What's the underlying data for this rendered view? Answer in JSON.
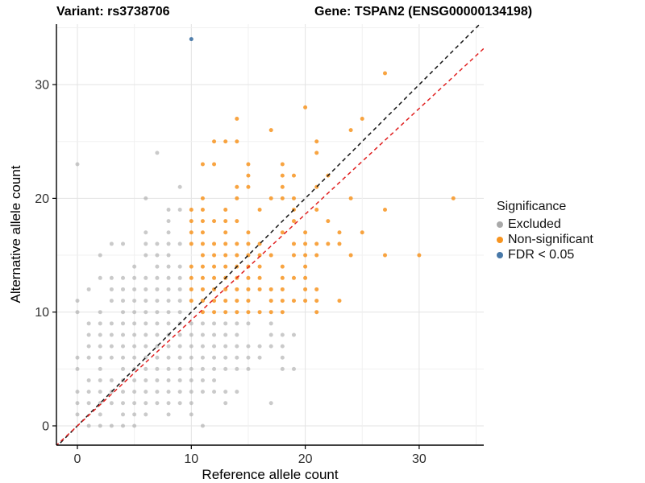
{
  "header": {
    "variant_title": "Variant: rs3738706",
    "gene_title": "Gene: TSPAN2 (ENSG00000134198)"
  },
  "axes": {
    "x_label": "Reference allele count",
    "y_label": "Alternative allele count",
    "x_tick_labels": [
      "0",
      "10",
      "20",
      "30"
    ],
    "y_tick_labels": [
      "0",
      "10",
      "20",
      "30"
    ]
  },
  "legend": {
    "title": "Significance"
  },
  "colors": {
    "excluded": "#A9A9A9",
    "nonsignificant": "#F79420",
    "fdr": "#4878A8",
    "identity_line": "#141414",
    "fit_line": "#E02020",
    "grid_major": "#E3E3E3",
    "grid_minor": "#F0F0F0",
    "axis": "#000000",
    "tick_text": "#303030"
  },
  "chart_data": {
    "type": "scatter",
    "xlabel": "Reference allele count",
    "ylabel": "Alternative allele count",
    "xlim": [
      -1.85,
      35.7
    ],
    "ylim": [
      -1.7,
      35.4
    ],
    "xticks": [
      0,
      10,
      20,
      30
    ],
    "yticks": [
      0,
      10,
      20,
      30
    ],
    "grid_interval": 5,
    "grid_on": true,
    "legend_position": "right",
    "series": [
      {
        "name": "Excluded",
        "color": "#A9A9A9",
        "opacity": 0.62,
        "points": [
          [
            1,
            0
          ],
          [
            2,
            0
          ],
          [
            3,
            0
          ],
          [
            4,
            0
          ],
          [
            5,
            0
          ],
          [
            11,
            0
          ],
          [
            0,
            1
          ],
          [
            2,
            1
          ],
          [
            4,
            1
          ],
          [
            5,
            1
          ],
          [
            6,
            1
          ],
          [
            8,
            1
          ],
          [
            10,
            1
          ],
          [
            0,
            2
          ],
          [
            1,
            2
          ],
          [
            2,
            2
          ],
          [
            3,
            2
          ],
          [
            4,
            2
          ],
          [
            5,
            2
          ],
          [
            6,
            2
          ],
          [
            7,
            2
          ],
          [
            8,
            2
          ],
          [
            9,
            2
          ],
          [
            10,
            2
          ],
          [
            13,
            2
          ],
          [
            17,
            2
          ],
          [
            0,
            3
          ],
          [
            1,
            3
          ],
          [
            2,
            3
          ],
          [
            3,
            3
          ],
          [
            4,
            3
          ],
          [
            5,
            3
          ],
          [
            6,
            3
          ],
          [
            7,
            3
          ],
          [
            8,
            3
          ],
          [
            9,
            3
          ],
          [
            10,
            3
          ],
          [
            11,
            3
          ],
          [
            12,
            3
          ],
          [
            13,
            3
          ],
          [
            14,
            3
          ],
          [
            1,
            4
          ],
          [
            2,
            4
          ],
          [
            3,
            4
          ],
          [
            4,
            4
          ],
          [
            5,
            4
          ],
          [
            6,
            4
          ],
          [
            7,
            4
          ],
          [
            8,
            4
          ],
          [
            9,
            4
          ],
          [
            10,
            4
          ],
          [
            11,
            4
          ],
          [
            12,
            4
          ],
          [
            0,
            5
          ],
          [
            2,
            5
          ],
          [
            4,
            5
          ],
          [
            5,
            5
          ],
          [
            6,
            5
          ],
          [
            7,
            5
          ],
          [
            8,
            5
          ],
          [
            9,
            5
          ],
          [
            10,
            5
          ],
          [
            11,
            5
          ],
          [
            12,
            5
          ],
          [
            13,
            5
          ],
          [
            14,
            5
          ],
          [
            15,
            5
          ],
          [
            18,
            5
          ],
          [
            19,
            5
          ],
          [
            0,
            6
          ],
          [
            1,
            6
          ],
          [
            2,
            6
          ],
          [
            3,
            6
          ],
          [
            4,
            6
          ],
          [
            5,
            6
          ],
          [
            6,
            6
          ],
          [
            7,
            6
          ],
          [
            8,
            6
          ],
          [
            9,
            6
          ],
          [
            10,
            6
          ],
          [
            11,
            6
          ],
          [
            12,
            6
          ],
          [
            13,
            6
          ],
          [
            14,
            6
          ],
          [
            15,
            6
          ],
          [
            16,
            6
          ],
          [
            18,
            6
          ],
          [
            1,
            7
          ],
          [
            2,
            7
          ],
          [
            3,
            7
          ],
          [
            4,
            7
          ],
          [
            5,
            7
          ],
          [
            6,
            7
          ],
          [
            7,
            7
          ],
          [
            8,
            7
          ],
          [
            9,
            7
          ],
          [
            10,
            7
          ],
          [
            11,
            7
          ],
          [
            12,
            7
          ],
          [
            13,
            7
          ],
          [
            14,
            7
          ],
          [
            15,
            7
          ],
          [
            16,
            7
          ],
          [
            17,
            7
          ],
          [
            18,
            7
          ],
          [
            1,
            8
          ],
          [
            2,
            8
          ],
          [
            3,
            8
          ],
          [
            4,
            8
          ],
          [
            5,
            8
          ],
          [
            6,
            8
          ],
          [
            7,
            8
          ],
          [
            8,
            8
          ],
          [
            9,
            8
          ],
          [
            10,
            8
          ],
          [
            11,
            8
          ],
          [
            12,
            8
          ],
          [
            13,
            8
          ],
          [
            14,
            8
          ],
          [
            17,
            8
          ],
          [
            18,
            8
          ],
          [
            19,
            8
          ],
          [
            1,
            9
          ],
          [
            2,
            9
          ],
          [
            3,
            9
          ],
          [
            4,
            9
          ],
          [
            5,
            9
          ],
          [
            6,
            9
          ],
          [
            7,
            9
          ],
          [
            8,
            9
          ],
          [
            9,
            9
          ],
          [
            10,
            9
          ],
          [
            11,
            9
          ],
          [
            12,
            9
          ],
          [
            13,
            9
          ],
          [
            14,
            9
          ],
          [
            15,
            9
          ],
          [
            17,
            9
          ],
          [
            0,
            10
          ],
          [
            2,
            10
          ],
          [
            4,
            10
          ],
          [
            5,
            10
          ],
          [
            6,
            10
          ],
          [
            7,
            10
          ],
          [
            8,
            10
          ],
          [
            9,
            10
          ],
          [
            0,
            11
          ],
          [
            3,
            11
          ],
          [
            4,
            11
          ],
          [
            5,
            11
          ],
          [
            6,
            11
          ],
          [
            7,
            11
          ],
          [
            8,
            11
          ],
          [
            9,
            11
          ],
          [
            1,
            12
          ],
          [
            3,
            12
          ],
          [
            4,
            12
          ],
          [
            5,
            12
          ],
          [
            6,
            12
          ],
          [
            7,
            12
          ],
          [
            8,
            12
          ],
          [
            9,
            12
          ],
          [
            2,
            13
          ],
          [
            3,
            13
          ],
          [
            4,
            13
          ],
          [
            5,
            13
          ],
          [
            6,
            13
          ],
          [
            7,
            13
          ],
          [
            8,
            13
          ],
          [
            9,
            13
          ],
          [
            5,
            14
          ],
          [
            7,
            14
          ],
          [
            8,
            14
          ],
          [
            9,
            14
          ],
          [
            2,
            15
          ],
          [
            6,
            15
          ],
          [
            7,
            15
          ],
          [
            8,
            15
          ],
          [
            3,
            16
          ],
          [
            4,
            16
          ],
          [
            6,
            16
          ],
          [
            7,
            16
          ],
          [
            8,
            16
          ],
          [
            9,
            16
          ],
          [
            6,
            17
          ],
          [
            8,
            17
          ],
          [
            8,
            18
          ],
          [
            8,
            19
          ],
          [
            9,
            19
          ],
          [
            6,
            20
          ],
          [
            9,
            21
          ],
          [
            0,
            23
          ],
          [
            7,
            24
          ]
        ]
      },
      {
        "name": "Non-significant",
        "color": "#F79420",
        "opacity": 0.85,
        "points": [
          [
            11,
            10
          ],
          [
            12,
            10
          ],
          [
            13,
            10
          ],
          [
            14,
            10
          ],
          [
            15,
            10
          ],
          [
            16,
            10
          ],
          [
            17,
            10
          ],
          [
            18,
            10
          ],
          [
            21,
            10
          ],
          [
            10,
            11
          ],
          [
            11,
            11
          ],
          [
            12,
            11
          ],
          [
            13,
            11
          ],
          [
            14,
            11
          ],
          [
            15,
            11
          ],
          [
            17,
            11
          ],
          [
            18,
            11
          ],
          [
            19,
            11
          ],
          [
            20,
            11
          ],
          [
            21,
            11
          ],
          [
            23,
            11
          ],
          [
            10,
            12
          ],
          [
            11,
            12
          ],
          [
            12,
            12
          ],
          [
            13,
            12
          ],
          [
            14,
            12
          ],
          [
            15,
            12
          ],
          [
            16,
            12
          ],
          [
            17,
            12
          ],
          [
            18,
            12
          ],
          [
            20,
            12
          ],
          [
            21,
            12
          ],
          [
            10,
            13
          ],
          [
            11,
            13
          ],
          [
            12,
            13
          ],
          [
            13,
            13
          ],
          [
            14,
            13
          ],
          [
            15,
            13
          ],
          [
            16,
            13
          ],
          [
            18,
            13
          ],
          [
            19,
            13
          ],
          [
            20,
            13
          ],
          [
            10,
            14
          ],
          [
            11,
            14
          ],
          [
            12,
            14
          ],
          [
            13,
            14
          ],
          [
            14,
            14
          ],
          [
            15,
            14
          ],
          [
            16,
            14
          ],
          [
            18,
            14
          ],
          [
            20,
            14
          ],
          [
            11,
            15
          ],
          [
            12,
            15
          ],
          [
            13,
            15
          ],
          [
            14,
            15
          ],
          [
            15,
            15
          ],
          [
            16,
            15
          ],
          [
            17,
            15
          ],
          [
            19,
            15
          ],
          [
            20,
            15
          ],
          [
            21,
            15
          ],
          [
            24,
            15
          ],
          [
            27,
            15
          ],
          [
            30,
            15
          ],
          [
            10,
            16
          ],
          [
            11,
            16
          ],
          [
            12,
            16
          ],
          [
            13,
            16
          ],
          [
            14,
            16
          ],
          [
            15,
            16
          ],
          [
            16,
            16
          ],
          [
            19,
            16
          ],
          [
            20,
            16
          ],
          [
            21,
            16
          ],
          [
            22,
            16
          ],
          [
            23,
            16
          ],
          [
            10,
            17
          ],
          [
            11,
            17
          ],
          [
            13,
            17
          ],
          [
            15,
            17
          ],
          [
            18,
            17
          ],
          [
            20,
            17
          ],
          [
            23,
            17
          ],
          [
            25,
            17
          ],
          [
            10,
            18
          ],
          [
            11,
            18
          ],
          [
            12,
            18
          ],
          [
            13,
            18
          ],
          [
            14,
            18
          ],
          [
            19,
            18
          ],
          [
            22,
            18
          ],
          [
            10,
            19
          ],
          [
            11,
            19
          ],
          [
            13,
            19
          ],
          [
            16,
            19
          ],
          [
            19,
            19
          ],
          [
            21,
            19
          ],
          [
            27,
            19
          ],
          [
            11,
            20
          ],
          [
            14,
            20
          ],
          [
            17,
            20
          ],
          [
            18,
            20
          ],
          [
            19,
            20
          ],
          [
            24,
            20
          ],
          [
            33,
            20
          ],
          [
            14,
            21
          ],
          [
            15,
            21
          ],
          [
            18,
            21
          ],
          [
            21,
            21
          ],
          [
            15,
            22
          ],
          [
            18,
            22
          ],
          [
            19,
            22
          ],
          [
            22,
            22
          ],
          [
            11,
            23
          ],
          [
            12,
            23
          ],
          [
            15,
            23
          ],
          [
            18,
            23
          ],
          [
            21,
            24
          ],
          [
            12,
            25
          ],
          [
            13,
            25
          ],
          [
            14,
            25
          ],
          [
            21,
            25
          ],
          [
            17,
            26
          ],
          [
            24,
            26
          ],
          [
            14,
            27
          ],
          [
            25,
            27
          ],
          [
            20,
            28
          ],
          [
            27,
            31
          ]
        ]
      },
      {
        "name": "FDR < 0.05",
        "color": "#4878A8",
        "opacity": 0.95,
        "points": [
          [
            10,
            34
          ]
        ]
      }
    ],
    "lines": [
      {
        "name": "identity",
        "slope": 1.0,
        "intercept": 0.0,
        "color": "#141414",
        "style": "dashed"
      },
      {
        "name": "fit",
        "slope": 0.93,
        "intercept": 0.0,
        "color": "#E02020",
        "style": "dashed"
      }
    ]
  }
}
